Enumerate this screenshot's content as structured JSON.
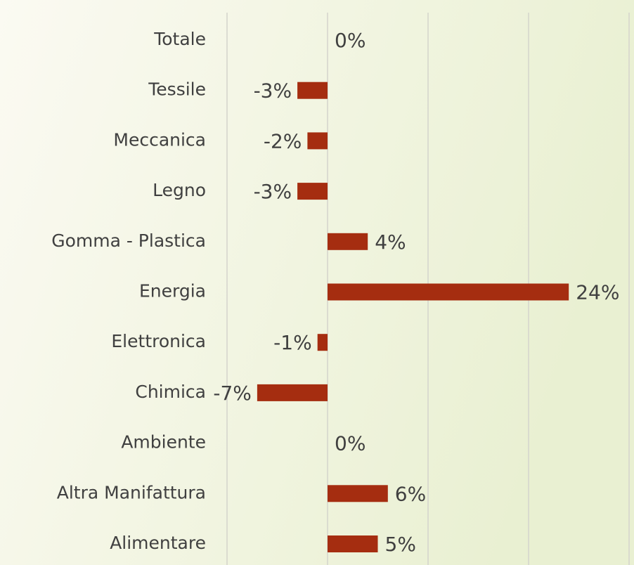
{
  "chart_data": {
    "type": "barh",
    "categories": [
      "Totale",
      "Tessile",
      "Meccanica",
      "Legno ",
      "Gomma - Plastica",
      "Energia",
      "Elettronica",
      "Chimica",
      "Ambiente",
      "Altra Manifattura",
      "Alimentare"
    ],
    "values": [
      0,
      -3,
      -2,
      -3,
      4,
      24,
      -1,
      -7,
      0,
      6,
      5
    ],
    "value_labels": [
      "0%",
      "-3%",
      "-2%",
      "-3%",
      "4%",
      "24%",
      "-1%",
      "-7%",
      "0%",
      "6%",
      "5%"
    ],
    "color": "#a52d10",
    "xlim": [
      -10,
      30
    ],
    "xticks": [
      -10,
      0,
      10,
      20,
      30
    ],
    "grid": true
  }
}
